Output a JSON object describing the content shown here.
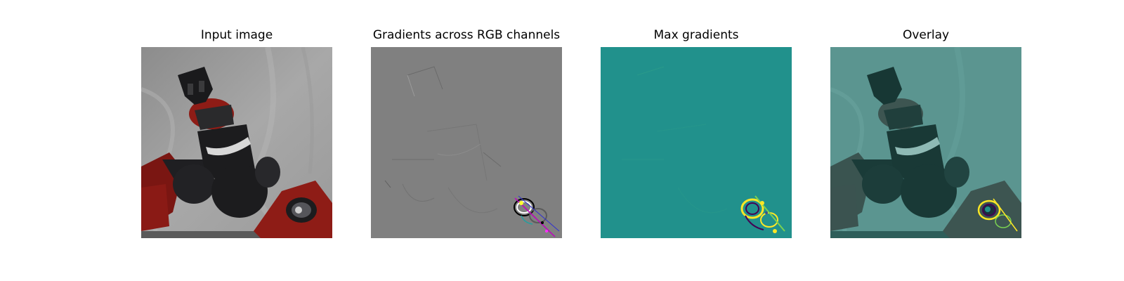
{
  "figure": {
    "panels": [
      {
        "title": "Input image",
        "icon": "photo-icon"
      },
      {
        "title": "Gradients across RGB channels",
        "icon": "gradient-map-icon"
      },
      {
        "title": "Max gradients",
        "icon": "heatmap-icon"
      },
      {
        "title": "Overlay",
        "icon": "overlay-icon"
      }
    ],
    "colors": {
      "backdrop": "#a3a3a3",
      "gradient_gray": "#808080",
      "max_gradient_teal": "#21918c",
      "overlay_teal": "#4c8c86",
      "robot_red": "#8e1c16",
      "robot_black": "#1c1c1e",
      "hotspot_yellow": "#fde725"
    }
  }
}
